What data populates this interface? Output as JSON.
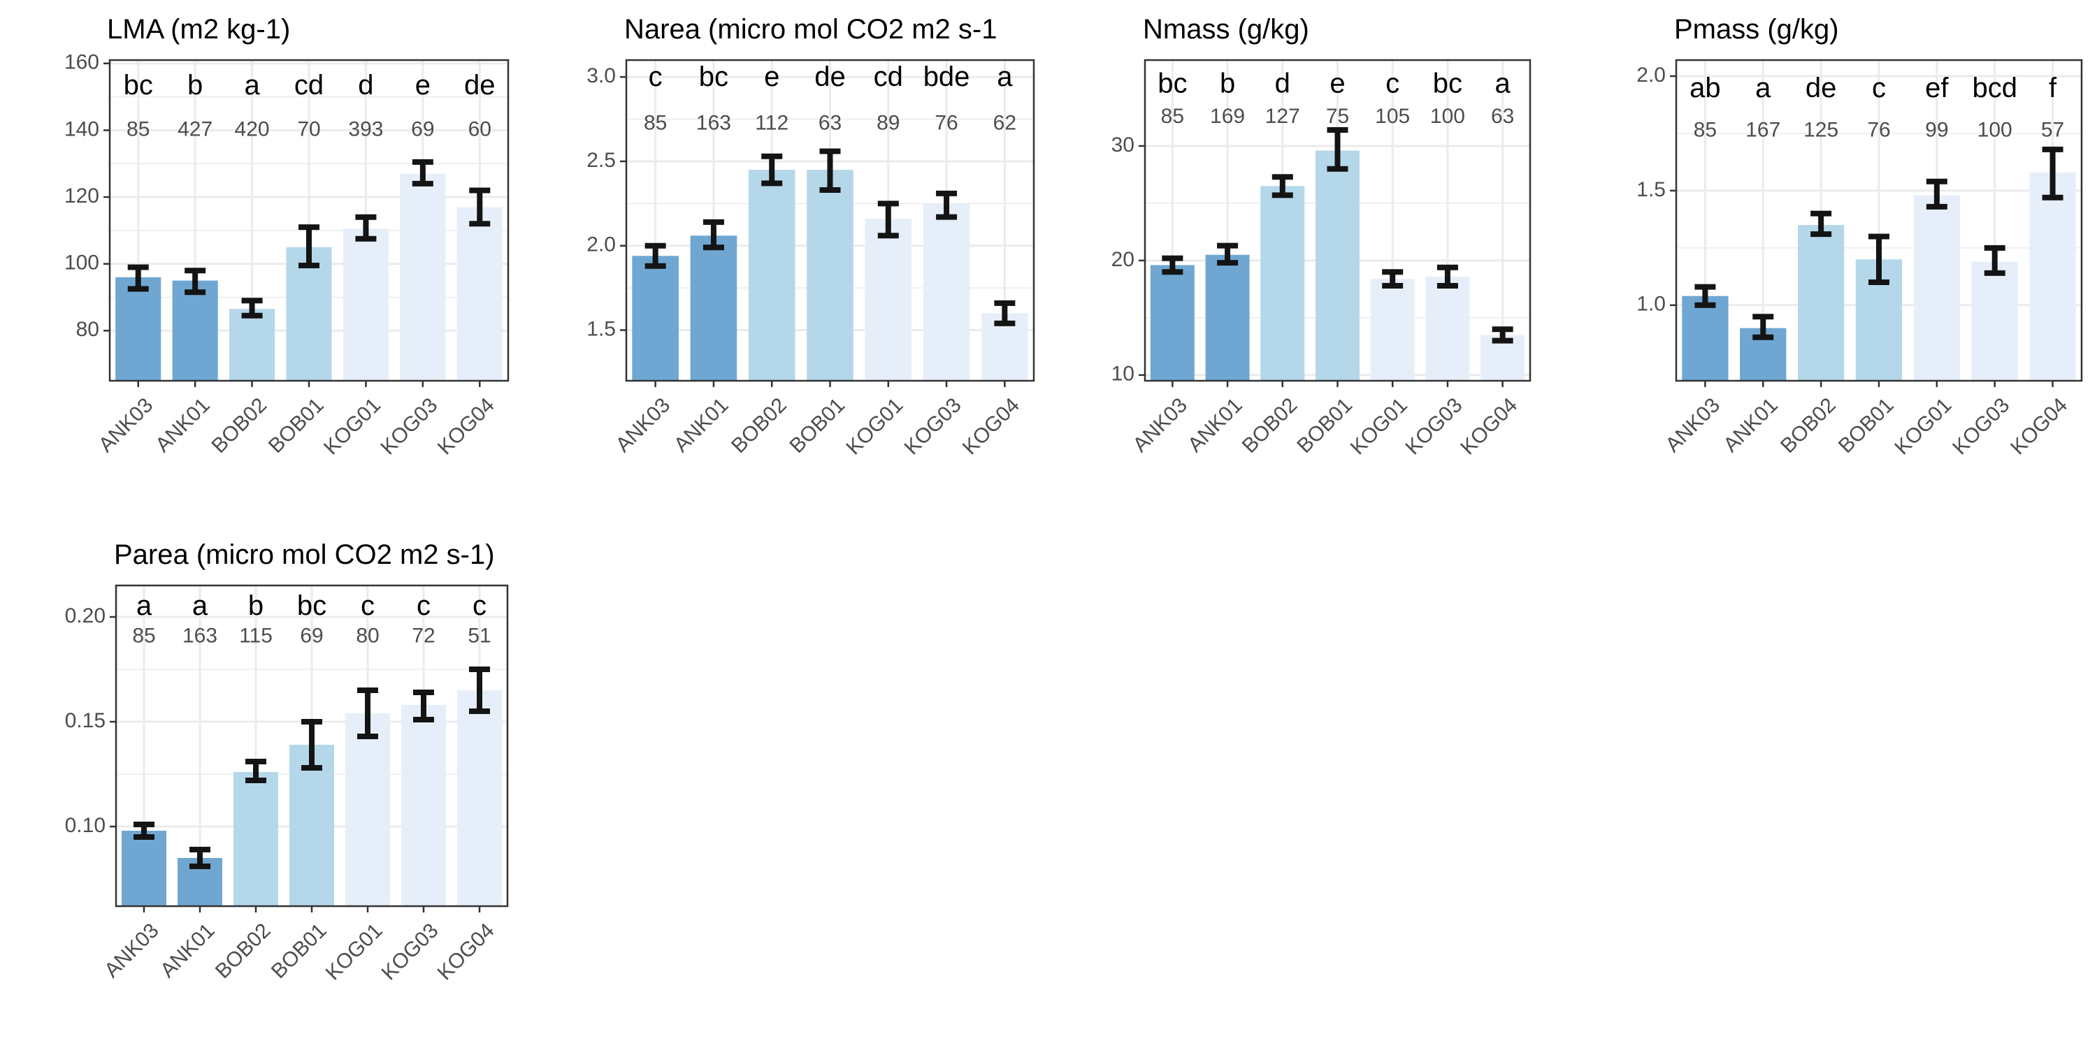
{
  "colors": {
    "ANK": "#6fa7d2",
    "BOB": "#b5d7ea",
    "KOG": "#e6eff9",
    "errorbar": "#141414",
    "grid": "#ebebeb",
    "border": "#333333"
  },
  "chart_data": [
    {
      "type": "bar",
      "title": "LMA (m2 kg-1)",
      "categories": [
        "ANK03",
        "ANK01",
        "BOB02",
        "BOB01",
        "KOG01",
        "KOG03",
        "KOG04"
      ],
      "groups": [
        "ANK",
        "ANK",
        "BOB",
        "BOB",
        "KOG",
        "KOG",
        "KOG"
      ],
      "values": [
        96,
        95,
        86.5,
        105,
        110.5,
        127,
        117
      ],
      "error_low": [
        92.5,
        91.5,
        84.5,
        99.5,
        107.5,
        124,
        112
      ],
      "error_high": [
        99,
        98,
        89,
        111,
        114,
        130.5,
        122
      ],
      "letters": [
        "bc",
        "b",
        "a",
        "cd",
        "d",
        "e",
        "de"
      ],
      "n": [
        "85",
        "427",
        "420",
        "70",
        "393",
        "69",
        "60"
      ],
      "ylim": [
        65,
        161
      ],
      "yticks": [
        80,
        100,
        120,
        140,
        160
      ],
      "ytick_labels": [
        "80",
        "100",
        "120",
        "140",
        "160"
      ],
      "letter_y": 153,
      "n_y": 140,
      "grid": true
    },
    {
      "type": "bar",
      "title": "Narea (micro mol CO2 m2 s-1",
      "categories": [
        "ANK03",
        "ANK01",
        "BOB02",
        "BOB01",
        "KOG01",
        "KOG03",
        "KOG04"
      ],
      "groups": [
        "ANK",
        "ANK",
        "BOB",
        "BOB",
        "KOG",
        "KOG",
        "KOG"
      ],
      "values": [
        1.94,
        2.06,
        2.45,
        2.45,
        2.16,
        2.25,
        1.6
      ],
      "error_low": [
        1.88,
        1.99,
        2.37,
        2.33,
        2.06,
        2.17,
        1.54
      ],
      "error_high": [
        2.0,
        2.14,
        2.53,
        2.56,
        2.25,
        2.31,
        1.66
      ],
      "letters": [
        "c",
        "bc",
        "e",
        "de",
        "cd",
        "bde",
        "a"
      ],
      "n": [
        "85",
        "163",
        "112",
        "63",
        "89",
        "76",
        "62"
      ],
      "ylim": [
        1.2,
        3.1
      ],
      "yticks": [
        1.5,
        2.0,
        2.5,
        3.0
      ],
      "ytick_labels": [
        "1.5",
        "2.0",
        "2.5",
        "3.0"
      ],
      "letter_y": 2.99,
      "n_y": 2.72,
      "grid": true
    },
    {
      "type": "bar",
      "title": "Nmass (g/kg)",
      "categories": [
        "ANK03",
        "ANK01",
        "BOB02",
        "BOB01",
        "KOG01",
        "KOG03",
        "KOG04"
      ],
      "groups": [
        "ANK",
        "ANK",
        "BOB",
        "BOB",
        "KOG",
        "KOG",
        "KOG"
      ],
      "values": [
        19.6,
        20.5,
        26.5,
        29.6,
        18.4,
        18.6,
        13.5
      ],
      "error_low": [
        19.0,
        19.8,
        25.7,
        28.0,
        17.8,
        17.8,
        13.0
      ],
      "error_high": [
        20.2,
        21.3,
        27.3,
        31.4,
        19.0,
        19.4,
        14.0
      ],
      "letters": [
        "bc",
        "b",
        "d",
        "e",
        "c",
        "bc",
        "a"
      ],
      "n": [
        "85",
        "169",
        "127",
        "75",
        "105",
        "100",
        "63"
      ],
      "ylim": [
        9.5,
        37.5
      ],
      "yticks": [
        10,
        20,
        30
      ],
      "ytick_labels": [
        "10",
        "20",
        "30"
      ],
      "letter_y": 35.3,
      "n_y": 32.5,
      "grid": true
    },
    {
      "type": "bar",
      "title": "Pmass (g/kg)",
      "categories": [
        "ANK03",
        "ANK01",
        "BOB02",
        "BOB01",
        "KOG01",
        "KOG03",
        "KOG04"
      ],
      "groups": [
        "ANK",
        "ANK",
        "BOB",
        "BOB",
        "KOG",
        "KOG",
        "KOG"
      ],
      "values": [
        1.04,
        0.9,
        1.35,
        1.2,
        1.48,
        1.19,
        1.58
      ],
      "error_low": [
        1.0,
        0.86,
        1.31,
        1.1,
        1.43,
        1.14,
        1.47
      ],
      "error_high": [
        1.08,
        0.95,
        1.4,
        1.3,
        1.54,
        1.25,
        1.68
      ],
      "letters": [
        "ab",
        "a",
        "de",
        "c",
        "ef",
        "bcd",
        "f"
      ],
      "n": [
        "85",
        "167",
        "125",
        "76",
        "99",
        "100",
        "57"
      ],
      "ylim": [
        0.67,
        2.07
      ],
      "yticks": [
        1.0,
        1.5,
        2.0
      ],
      "ytick_labels": [
        "1.0",
        "1.5",
        "2.0"
      ],
      "letter_y": 1.94,
      "n_y": 1.76,
      "grid": true
    },
    {
      "type": "bar",
      "title": "Parea (micro mol CO2 m2 s-1)",
      "categories": [
        "ANK03",
        "ANK01",
        "BOB02",
        "BOB01",
        "KOG01",
        "KOG03",
        "KOG04"
      ],
      "groups": [
        "ANK",
        "ANK",
        "BOB",
        "BOB",
        "KOG",
        "KOG",
        "KOG"
      ],
      "values": [
        0.098,
        0.085,
        0.126,
        0.139,
        0.154,
        0.158,
        0.165
      ],
      "error_low": [
        0.095,
        0.081,
        0.122,
        0.128,
        0.143,
        0.151,
        0.155
      ],
      "error_high": [
        0.101,
        0.089,
        0.131,
        0.15,
        0.165,
        0.164,
        0.175
      ],
      "letters": [
        "a",
        "a",
        "b",
        "bc",
        "c",
        "c",
        "c"
      ],
      "n": [
        "85",
        "163",
        "115",
        "69",
        "80",
        "72",
        "51"
      ],
      "ylim": [
        0.062,
        0.215
      ],
      "yticks": [
        0.1,
        0.15,
        0.2
      ],
      "ytick_labels": [
        "0.10",
        "0.15",
        "0.20"
      ],
      "letter_y": 0.2045,
      "n_y": 0.1905,
      "grid": true
    }
  ]
}
